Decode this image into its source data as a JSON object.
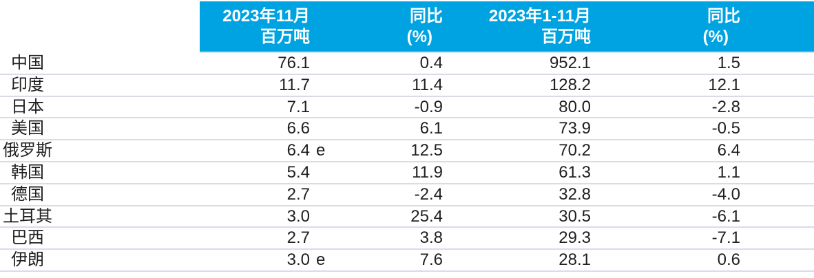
{
  "meta": {
    "colors": {
      "header_bg": "#00A3E1",
      "header_text": "#ffffff",
      "body_text": "#1f1f1f",
      "row_separator": "#d9dbe7",
      "background": "#ffffff"
    }
  },
  "table": {
    "columns": {
      "nov": {
        "header_line1": "2023年11月",
        "header_line2": "百万吨"
      },
      "yoy_nov": {
        "header_line1": "同比",
        "header_line2": "(%)"
      },
      "cum": {
        "header_line1": "2023年1-11月",
        "header_line2": "百万吨"
      },
      "yoy_cum": {
        "header_line1": "同比",
        "header_line2": "(%)"
      }
    },
    "rows": [
      {
        "country": "中国",
        "nov": "76.1",
        "nov_suffix": "",
        "yoy_nov": "0.4",
        "cum": "952.1",
        "yoy_cum": "1.5"
      },
      {
        "country": "印度",
        "nov": "11.7",
        "nov_suffix": "",
        "yoy_nov": "11.4",
        "cum": "128.2",
        "yoy_cum": "12.1"
      },
      {
        "country": "日本",
        "nov": "7.1",
        "nov_suffix": "",
        "yoy_nov": "-0.9",
        "cum": "80.0",
        "yoy_cum": "-2.8"
      },
      {
        "country": "美国",
        "nov": "6.6",
        "nov_suffix": "",
        "yoy_nov": "6.1",
        "cum": "73.9",
        "yoy_cum": "-0.5"
      },
      {
        "country": "俄罗斯",
        "nov": "6.4",
        "nov_suffix": "e",
        "yoy_nov": "12.5",
        "cum": "70.2",
        "yoy_cum": "6.4"
      },
      {
        "country": "韩国",
        "nov": "5.4",
        "nov_suffix": "",
        "yoy_nov": "11.9",
        "cum": "61.3",
        "yoy_cum": "1.1"
      },
      {
        "country": "德国",
        "nov": "2.7",
        "nov_suffix": "",
        "yoy_nov": "-2.4",
        "cum": "32.8",
        "yoy_cum": "-4.0"
      },
      {
        "country": "土耳其",
        "nov": "3.0",
        "nov_suffix": "",
        "yoy_nov": "25.4",
        "cum": "30.5",
        "yoy_cum": "-6.1"
      },
      {
        "country": "巴西",
        "nov": "2.7",
        "nov_suffix": "",
        "yoy_nov": "3.8",
        "cum": "29.3",
        "yoy_cum": "-7.1"
      },
      {
        "country": "伊朗",
        "nov": "3.0",
        "nov_suffix": "e",
        "yoy_nov": "7.6",
        "cum": "28.1",
        "yoy_cum": "0.6"
      }
    ]
  }
}
